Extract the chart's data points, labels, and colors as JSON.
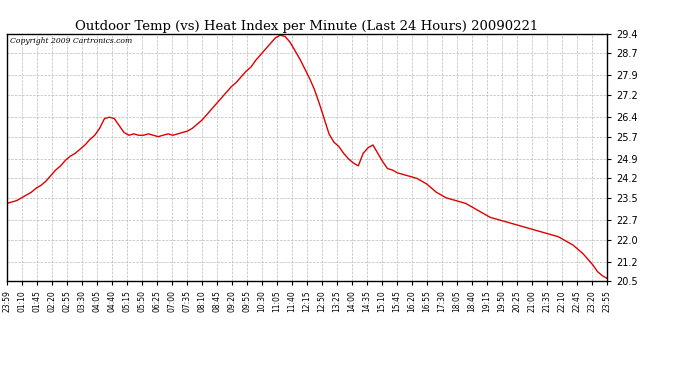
{
  "title": "Outdoor Temp (vs) Heat Index per Minute (Last 24 Hours) 20090221",
  "copyright_text": "Copyright 2009 Cartronics.com",
  "line_color": "#dd0000",
  "background_color": "#ffffff",
  "grid_color": "#aaaaaa",
  "ylim": [
    20.5,
    29.4
  ],
  "yticks": [
    20.5,
    21.2,
    22.0,
    22.7,
    23.5,
    24.2,
    24.9,
    25.7,
    26.4,
    27.2,
    27.9,
    28.7,
    29.4
  ],
  "xtick_labels": [
    "23:59",
    "01:10",
    "01:45",
    "02:20",
    "02:55",
    "03:30",
    "04:05",
    "04:40",
    "05:15",
    "05:50",
    "06:25",
    "07:00",
    "07:35",
    "08:10",
    "08:45",
    "09:20",
    "09:55",
    "10:30",
    "11:05",
    "11:40",
    "12:15",
    "12:50",
    "13:25",
    "14:00",
    "14:35",
    "15:10",
    "15:45",
    "16:20",
    "16:55",
    "17:30",
    "18:05",
    "18:40",
    "19:15",
    "19:50",
    "20:25",
    "21:00",
    "21:35",
    "22:10",
    "22:45",
    "23:20",
    "23:55"
  ],
  "data_y": [
    23.3,
    23.35,
    23.4,
    23.5,
    23.6,
    23.7,
    23.85,
    23.95,
    24.1,
    24.3,
    24.5,
    24.65,
    24.85,
    25.0,
    25.1,
    25.25,
    25.4,
    25.6,
    25.75,
    26.0,
    26.35,
    26.4,
    26.35,
    26.1,
    25.85,
    25.75,
    25.8,
    25.75,
    25.75,
    25.8,
    25.75,
    25.7,
    25.75,
    25.8,
    25.75,
    25.8,
    25.85,
    25.9,
    26.0,
    26.15,
    26.3,
    26.5,
    26.7,
    26.9,
    27.1,
    27.3,
    27.5,
    27.65,
    27.85,
    28.05,
    28.2,
    28.45,
    28.65,
    28.85,
    29.05,
    29.25,
    29.35,
    29.3,
    29.1,
    28.8,
    28.5,
    28.15,
    27.8,
    27.4,
    26.9,
    26.35,
    25.8,
    25.5,
    25.35,
    25.1,
    24.9,
    24.75,
    24.65,
    25.1,
    25.3,
    25.4,
    25.1,
    24.8,
    24.55,
    24.5,
    24.4,
    24.35,
    24.3,
    24.25,
    24.2,
    24.1,
    24.0,
    23.85,
    23.7,
    23.6,
    23.5,
    23.45,
    23.4,
    23.35,
    23.3,
    23.2,
    23.1,
    23.0,
    22.9,
    22.8,
    22.75,
    22.7,
    22.65,
    22.6,
    22.55,
    22.5,
    22.45,
    22.4,
    22.35,
    22.3,
    22.25,
    22.2,
    22.15,
    22.1,
    22.0,
    21.9,
    21.8,
    21.65,
    21.5,
    21.3,
    21.1,
    20.85,
    20.7,
    20.6
  ]
}
